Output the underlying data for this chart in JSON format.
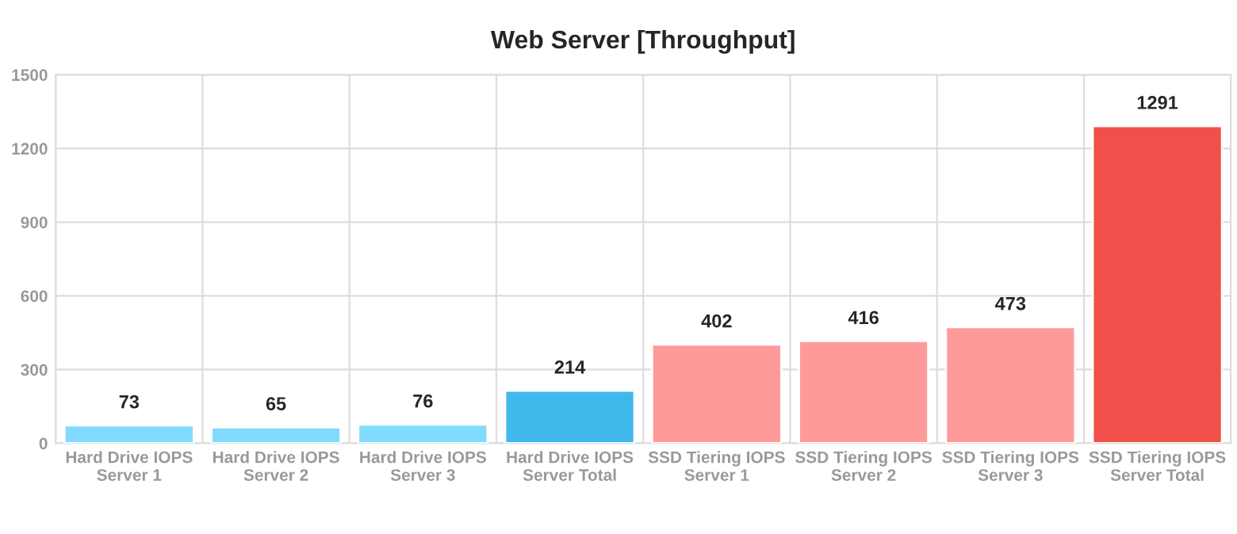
{
  "chart_data": {
    "type": "bar",
    "title": "Web Server [Throughput]",
    "categories": [
      "Hard Drive IOPS\nServer 1",
      "Hard Drive IOPS\nServer 2",
      "Hard Drive IOPS\nServer 3",
      "Hard Drive IOPS\nServer Total",
      "SSD Tiering IOPS\nServer 1",
      "SSD Tiering IOPS\nServer 2",
      "SSD Tiering IOPS\nServer 3",
      "SSD Tiering IOPS\nServer Total"
    ],
    "values": [
      73,
      65,
      76,
      214,
      402,
      416,
      473,
      1291
    ],
    "colors": [
      "#80dbff",
      "#80dbff",
      "#80dbff",
      "#40b8ec",
      "#ff9a9a",
      "#ff9a9a",
      "#ff9a9a",
      "#f0504a"
    ],
    "ylim": [
      0,
      1500
    ],
    "yticks": [
      0,
      300,
      600,
      900,
      1200,
      1500
    ],
    "grid": true,
    "data_labels": true
  }
}
